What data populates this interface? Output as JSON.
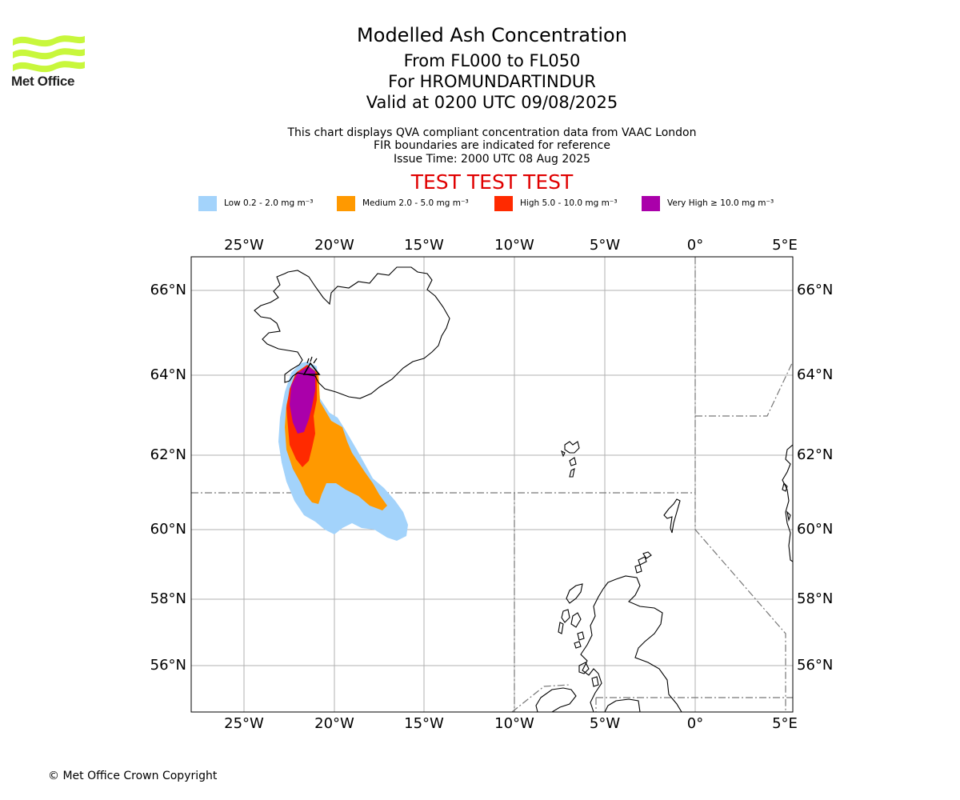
{
  "logo": {
    "name": "Met Office",
    "colors": {
      "waves": "#c8f73c",
      "text": "#222222"
    }
  },
  "title": {
    "main": "Modelled Ash Concentration",
    "levels": "From FL000 to FL050",
    "volcano": "For HROMUNDARTINDUR",
    "valid": "Valid at 0200 UTC 09/08/2025"
  },
  "subtitle": {
    "line1": "This chart displays QVA compliant concentration data from VAAC London",
    "line2": "FIR boundaries are indicated for reference",
    "line3": "Issue Time: 2000 UTC 08 Aug 2025"
  },
  "test_banner": "TEST TEST TEST",
  "legend": [
    {
      "label": "Low 0.2 - 2.0 mg m⁻³",
      "color": "#a3d3fb"
    },
    {
      "label": "Medium 2.0 - 5.0 mg m⁻³",
      "color": "#ff9900"
    },
    {
      "label": "High 5.0 - 10.0 mg m⁻³",
      "color": "#ff2a00"
    },
    {
      "label": "Very High ≥ 10.0 mg m⁻³",
      "color": "#aa00aa"
    }
  ],
  "map": {
    "lon_ticks": [
      "25°W",
      "20°W",
      "15°W",
      "10°W",
      "5°W",
      "0°",
      "5°E"
    ],
    "lat_ticks": [
      "66°N",
      "64°N",
      "62°N",
      "60°N",
      "58°N",
      "56°N"
    ],
    "lon_range": [
      -28,
      5.5
    ],
    "lat_range": [
      54.8,
      66.8
    ]
  },
  "copyright": "© Met Office Crown Copyright"
}
